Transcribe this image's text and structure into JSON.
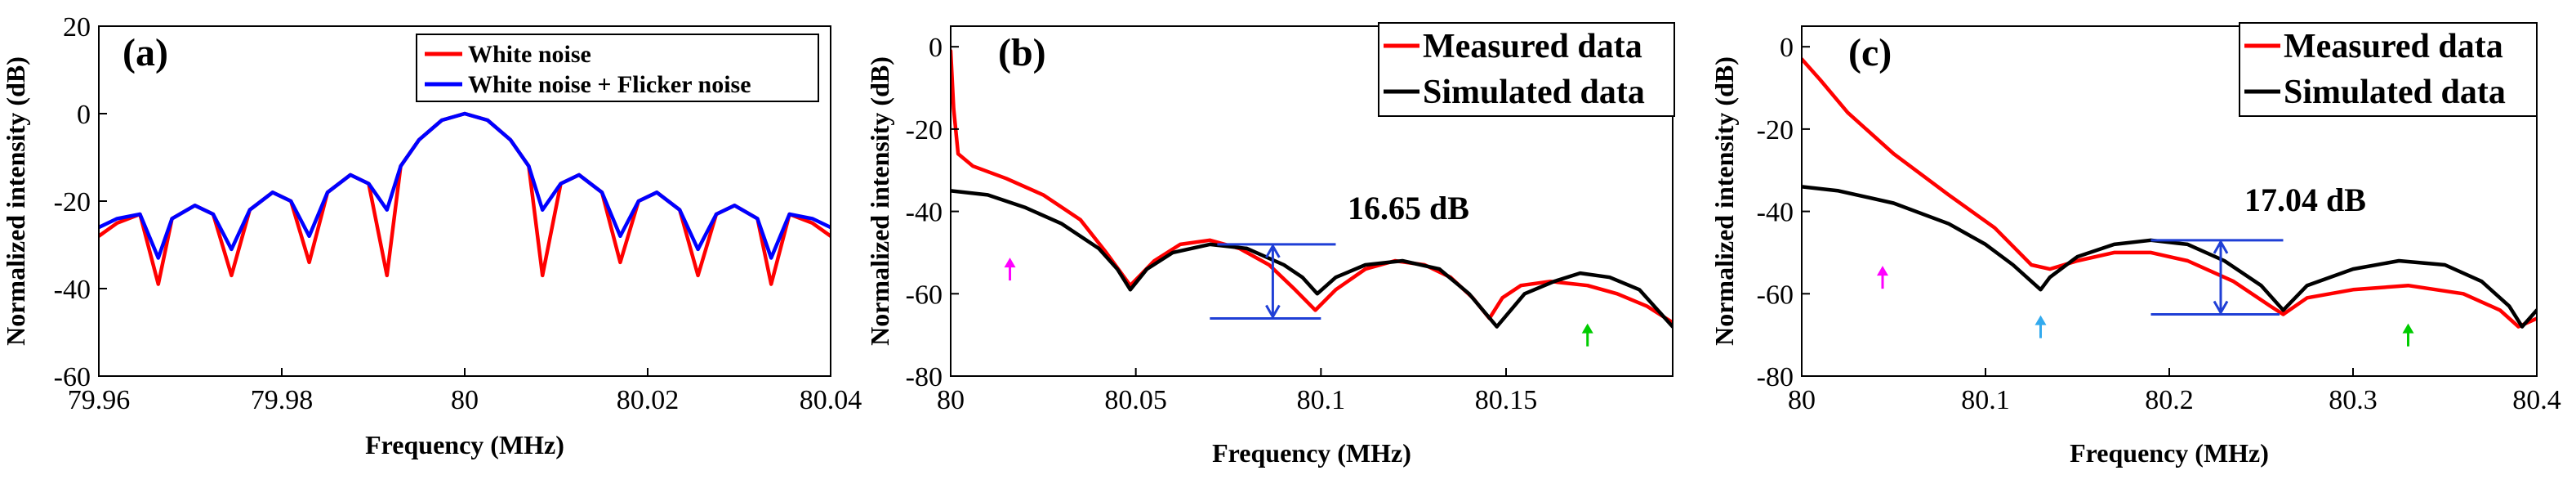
{
  "figure": {
    "ylabel": "Normalized intensity (dB)",
    "xlabel": "Frequency (MHz)"
  },
  "chart_data": [
    {
      "id": "a",
      "type": "line",
      "panel_label": "(a)",
      "xlabel": "Frequency (MHz)",
      "ylabel": "Normalized intensity (dB)",
      "xlim": [
        79.96,
        80.04
      ],
      "ylim": [
        -60,
        20
      ],
      "xticks": [
        "79.96",
        "79.98",
        "80",
        "80.02",
        "80.04"
      ],
      "yticks": [
        "20",
        "0",
        "-20",
        "-40",
        "-60"
      ],
      "xtick_values": [
        79.96,
        79.98,
        80,
        80.02,
        80.04
      ],
      "ytick_values": [
        20,
        0,
        -20,
        -40,
        -60
      ],
      "legend": {
        "position": "top-right",
        "entries": [
          "White noise",
          "White noise + Flicker noise"
        ]
      },
      "series": [
        {
          "name": "White noise",
          "color": "#ff0000",
          "x": [
            79.96,
            79.962,
            79.9645,
            79.9665,
            79.968,
            79.9705,
            79.9725,
            79.9745,
            79.9765,
            79.979,
            79.981,
            79.983,
            79.985,
            79.9875,
            79.9895,
            79.9915,
            79.993,
            79.995,
            79.9975,
            80,
            80.0025,
            80.005,
            80.007,
            80.0085,
            80.0105,
            80.0125,
            80.015,
            80.017,
            80.019,
            80.021,
            80.0235,
            80.0255,
            80.0275,
            80.0295,
            80.032,
            80.0335,
            80.0355,
            80.038,
            80.04
          ],
          "y": [
            -28,
            -25,
            -23,
            -39,
            -24,
            -21,
            -23,
            -37,
            -22,
            -18,
            -20,
            -34,
            -18,
            -14,
            -16,
            -37,
            -12,
            -6,
            -1.5,
            0,
            -1.5,
            -6,
            -12,
            -37,
            -16,
            -14,
            -18,
            -34,
            -20,
            -18,
            -22,
            -37,
            -23,
            -21,
            -24,
            -39,
            -23,
            -25,
            -28
          ]
        },
        {
          "name": "White noise + Flicker noise",
          "color": "#0000ff",
          "x": [
            79.96,
            79.962,
            79.9645,
            79.9665,
            79.968,
            79.9705,
            79.9725,
            79.9745,
            79.9765,
            79.979,
            79.981,
            79.983,
            79.985,
            79.9875,
            79.9895,
            79.9915,
            79.993,
            79.995,
            79.9975,
            80,
            80.0025,
            80.005,
            80.007,
            80.0085,
            80.0105,
            80.0125,
            80.015,
            80.017,
            80.019,
            80.021,
            80.0235,
            80.0255,
            80.0275,
            80.0295,
            80.032,
            80.0335,
            80.0355,
            80.038,
            80.04
          ],
          "y": [
            -26,
            -24,
            -23,
            -33,
            -24,
            -21,
            -23,
            -31,
            -22,
            -18,
            -20,
            -28,
            -18,
            -14,
            -16,
            -22,
            -12,
            -6,
            -1.5,
            0,
            -1.5,
            -6,
            -12,
            -22,
            -16,
            -14,
            -18,
            -28,
            -20,
            -18,
            -22,
            -31,
            -23,
            -21,
            -24,
            -33,
            -23,
            -24,
            -26
          ]
        }
      ]
    },
    {
      "id": "b",
      "type": "line",
      "panel_label": "(b)",
      "xlabel": "Frequency (MHz)",
      "ylabel": "Normalized intensity (dB)",
      "xlim": [
        80,
        80.195
      ],
      "ylim": [
        -80,
        5
      ],
      "xticks": [
        "80",
        "80.05",
        "80.1",
        "80.15"
      ],
      "yticks": [
        "0",
        "-20",
        "-40",
        "-60",
        "-80"
      ],
      "xtick_values": [
        80,
        80.05,
        80.1,
        80.15
      ],
      "ytick_values": [
        0,
        -20,
        -40,
        -60,
        -80
      ],
      "legend": {
        "position": "top-right",
        "entries": [
          "Measured data",
          "Simulated data"
        ]
      },
      "annotation": {
        "text": "16.65 dB",
        "x": 80.097,
        "y": -37,
        "bracket_top": -48,
        "bracket_bottom": -66,
        "bracket_x": [
          80.07,
          80.1
        ],
        "bracket_arrow_x": 80.087,
        "bracket_line_x": [
          80.072,
          80.104
        ],
        "bracket_line_x_bottom": [
          80.07,
          80.1
        ]
      },
      "arrows": [
        {
          "color": "#ff00ff",
          "x": 80.016,
          "y": -54
        },
        {
          "color": "#00cc00",
          "x": 80.172,
          "y": -70
        }
      ],
      "series": [
        {
          "name": "Measured data",
          "color": "#ff0000",
          "x": [
            80,
            80.0008,
            80.002,
            80.006,
            80.015,
            80.025,
            80.035,
            80.042,
            80.0485,
            80.055,
            80.062,
            80.07,
            80.078,
            80.086,
            80.093,
            80.0985,
            80.104,
            80.112,
            80.12,
            80.128,
            80.135,
            80.141,
            80.1455,
            80.149,
            80.154,
            80.162,
            80.172,
            80.18,
            80.188,
            80.195
          ],
          "y": [
            -1,
            -15,
            -26,
            -29,
            -32,
            -36,
            -42,
            -50,
            -58,
            -52,
            -48,
            -47,
            -49,
            -53,
            -59,
            -64,
            -59,
            -54,
            -52,
            -53,
            -56,
            -61,
            -66,
            -61,
            -58,
            -57,
            -58,
            -60,
            -63,
            -67
          ]
        },
        {
          "name": "Simulated data",
          "color": "#000000",
          "x": [
            80,
            80.01,
            80.02,
            80.03,
            80.04,
            80.045,
            80.0485,
            80.053,
            80.06,
            80.07,
            80.08,
            80.09,
            80.095,
            80.099,
            80.104,
            80.112,
            80.122,
            80.132,
            80.14,
            80.1475,
            80.155,
            80.163,
            80.17,
            80.178,
            80.186,
            80.195
          ],
          "y": [
            -35,
            -36,
            -39,
            -43,
            -49,
            -54,
            -59,
            -54,
            -50,
            -48,
            -49,
            -53,
            -56,
            -60,
            -56,
            -53,
            -52,
            -54,
            -60,
            -68,
            -60,
            -57,
            -55,
            -56,
            -59,
            -68
          ]
        }
      ]
    },
    {
      "id": "c",
      "type": "line",
      "panel_label": "(c)",
      "xlabel": "Frequency (MHz)",
      "ylabel": "Normalized intensity (dB)",
      "xlim": [
        80,
        80.4
      ],
      "ylim": [
        -80,
        5
      ],
      "xticks": [
        "80",
        "80.1",
        "80.2",
        "80.3",
        "80.4"
      ],
      "yticks": [
        "0",
        "-20",
        "-40",
        "-60",
        "-80"
      ],
      "xtick_values": [
        80,
        80.1,
        80.2,
        80.3,
        80.4
      ],
      "ytick_values": [
        0,
        -20,
        -40,
        -60,
        -80
      ],
      "legend": {
        "position": "top-right",
        "entries": [
          "Measured data",
          "Simulated data"
        ]
      },
      "annotation": {
        "text": "17.04 dB",
        "x": 80.22,
        "y": -37,
        "bracket_top": -47,
        "bracket_bottom": -65,
        "bracket_arrow_x": 80.228,
        "bracket_line_x": [
          80.19,
          80.262
        ],
        "bracket_line_x_bottom": [
          80.19,
          80.26
        ]
      },
      "arrows": [
        {
          "color": "#ff00ff",
          "x": 80.044,
          "y": -56
        },
        {
          "color": "#33aaee",
          "x": 80.13,
          "y": -68
        },
        {
          "color": "#00cc00",
          "x": 80.33,
          "y": -70
        }
      ],
      "series": [
        {
          "name": "Measured data",
          "color": "#ff0000",
          "x": [
            80,
            80.01,
            80.025,
            80.05,
            80.08,
            80.105,
            80.125,
            80.135,
            80.15,
            80.17,
            80.19,
            80.21,
            80.235,
            80.255,
            80.262,
            80.275,
            80.3,
            80.33,
            80.36,
            80.38,
            80.39,
            80.4
          ],
          "y": [
            -3,
            -8,
            -16,
            -26,
            -36,
            -44,
            -53,
            -54,
            -52,
            -50,
            -50,
            -52,
            -57,
            -63,
            -65,
            -61,
            -59,
            -58,
            -60,
            -64,
            -68,
            -66
          ]
        },
        {
          "name": "Simulated data",
          "color": "#000000",
          "x": [
            80,
            80.02,
            80.05,
            80.08,
            80.1,
            80.115,
            80.125,
            80.13,
            80.135,
            80.15,
            80.17,
            80.19,
            80.21,
            80.23,
            80.25,
            80.262,
            80.275,
            80.3,
            80.325,
            80.35,
            80.37,
            80.385,
            80.392,
            80.4
          ],
          "y": [
            -34,
            -35,
            -38,
            -43,
            -48,
            -53,
            -57,
            -59,
            -56,
            -51,
            -48,
            -47,
            -48,
            -52,
            -58,
            -64,
            -58,
            -54,
            -52,
            -53,
            -57,
            -63,
            -68,
            -64
          ]
        }
      ]
    }
  ]
}
